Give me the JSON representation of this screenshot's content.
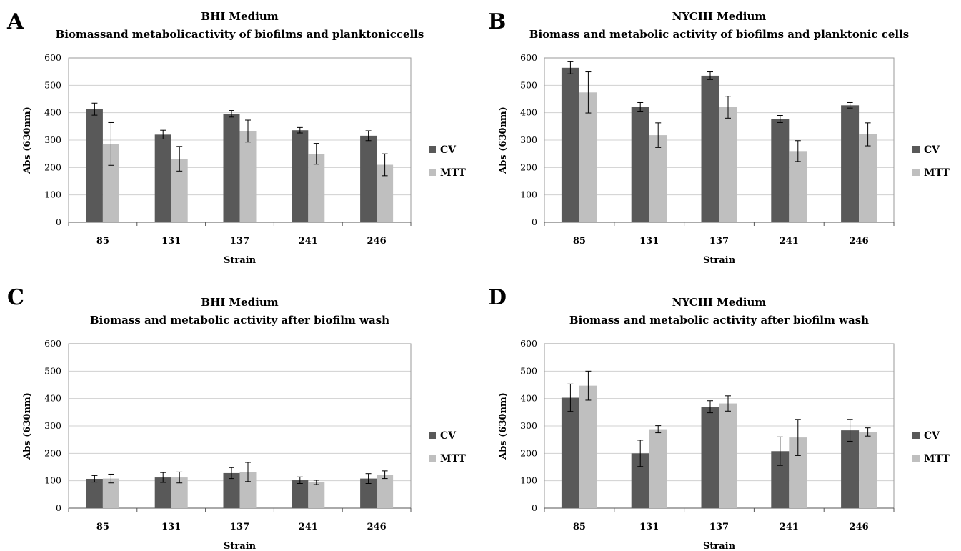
{
  "legend": [
    "CV",
    "MTT"
  ],
  "colors": {
    "CV": "#595959",
    "MTT": "#bfbfbf",
    "grid": "#d0d0d0",
    "frame": "#9a9a9a"
  },
  "chart_data": [
    {
      "panel": "A",
      "type": "bar",
      "title": "BHI Medium",
      "subtitle": "Biomassand metabolicactivity of biofilms and planktoniccells",
      "xlabel": "Strain",
      "ylabel": "Abs (630nm)",
      "ylim": [
        0,
        600
      ],
      "yticks": [
        0,
        100,
        200,
        300,
        400,
        500,
        600
      ],
      "grid": true,
      "legend_position": "right",
      "categories": [
        "85",
        "131",
        "137",
        "241",
        "246"
      ],
      "series": [
        {
          "name": "CV",
          "values": [
            413,
            320,
            396,
            336,
            316
          ],
          "errors": [
            22,
            16,
            12,
            10,
            18
          ]
        },
        {
          "name": "MTT",
          "values": [
            286,
            232,
            333,
            250,
            210
          ],
          "errors": [
            78,
            45,
            40,
            38,
            40
          ]
        }
      ]
    },
    {
      "panel": "B",
      "type": "bar",
      "title": "NYCIII Medium",
      "subtitle": "Biomass and metabolic activity of biofilms and planktonic cells",
      "xlabel": "Strain",
      "ylabel": "Abs (630nm)",
      "ylim": [
        0,
        600
      ],
      "yticks": [
        0,
        100,
        200,
        300,
        400,
        500,
        600
      ],
      "grid": true,
      "legend_position": "right",
      "categories": [
        "85",
        "131",
        "137",
        "241",
        "246"
      ],
      "series": [
        {
          "name": "CV",
          "values": [
            564,
            420,
            535,
            377,
            427
          ],
          "errors": [
            22,
            17,
            14,
            13,
            10
          ]
        },
        {
          "name": "MTT",
          "values": [
            474,
            318,
            420,
            260,
            321
          ],
          "errors": [
            75,
            45,
            40,
            38,
            42
          ]
        }
      ]
    },
    {
      "panel": "C",
      "type": "bar",
      "title": "BHI Medium",
      "subtitle": "Biomass and metabolic activity after biofilm wash",
      "xlabel": "Strain",
      "ylabel": "Abs (630nm)",
      "ylim": [
        0,
        600
      ],
      "yticks": [
        0,
        100,
        200,
        300,
        400,
        500,
        600
      ],
      "grid": true,
      "legend_position": "right",
      "categories": [
        "85",
        "131",
        "137",
        "241",
        "246"
      ],
      "series": [
        {
          "name": "CV",
          "values": [
            107,
            112,
            128,
            102,
            108
          ],
          "errors": [
            12,
            18,
            20,
            12,
            18
          ]
        },
        {
          "name": "MTT",
          "values": [
            108,
            112,
            132,
            94,
            122
          ],
          "errors": [
            16,
            20,
            35,
            8,
            14
          ]
        }
      ]
    },
    {
      "panel": "D",
      "type": "bar",
      "title": "NYCIII Medium",
      "subtitle": "Biomass and metabolic activity after biofilm wash",
      "xlabel": "Strain",
      "ylabel": "Abs (630nm)",
      "ylim": [
        0,
        600
      ],
      "yticks": [
        0,
        100,
        200,
        300,
        400,
        500,
        600
      ],
      "grid": true,
      "legend_position": "right",
      "categories": [
        "85",
        "131",
        "137",
        "241",
        "246"
      ],
      "series": [
        {
          "name": "CV",
          "values": [
            403,
            200,
            370,
            208,
            284
          ],
          "errors": [
            50,
            48,
            22,
            52,
            40
          ]
        },
        {
          "name": "MTT",
          "values": [
            447,
            288,
            382,
            258,
            278
          ],
          "errors": [
            53,
            13,
            28,
            66,
            15
          ]
        }
      ]
    }
  ]
}
